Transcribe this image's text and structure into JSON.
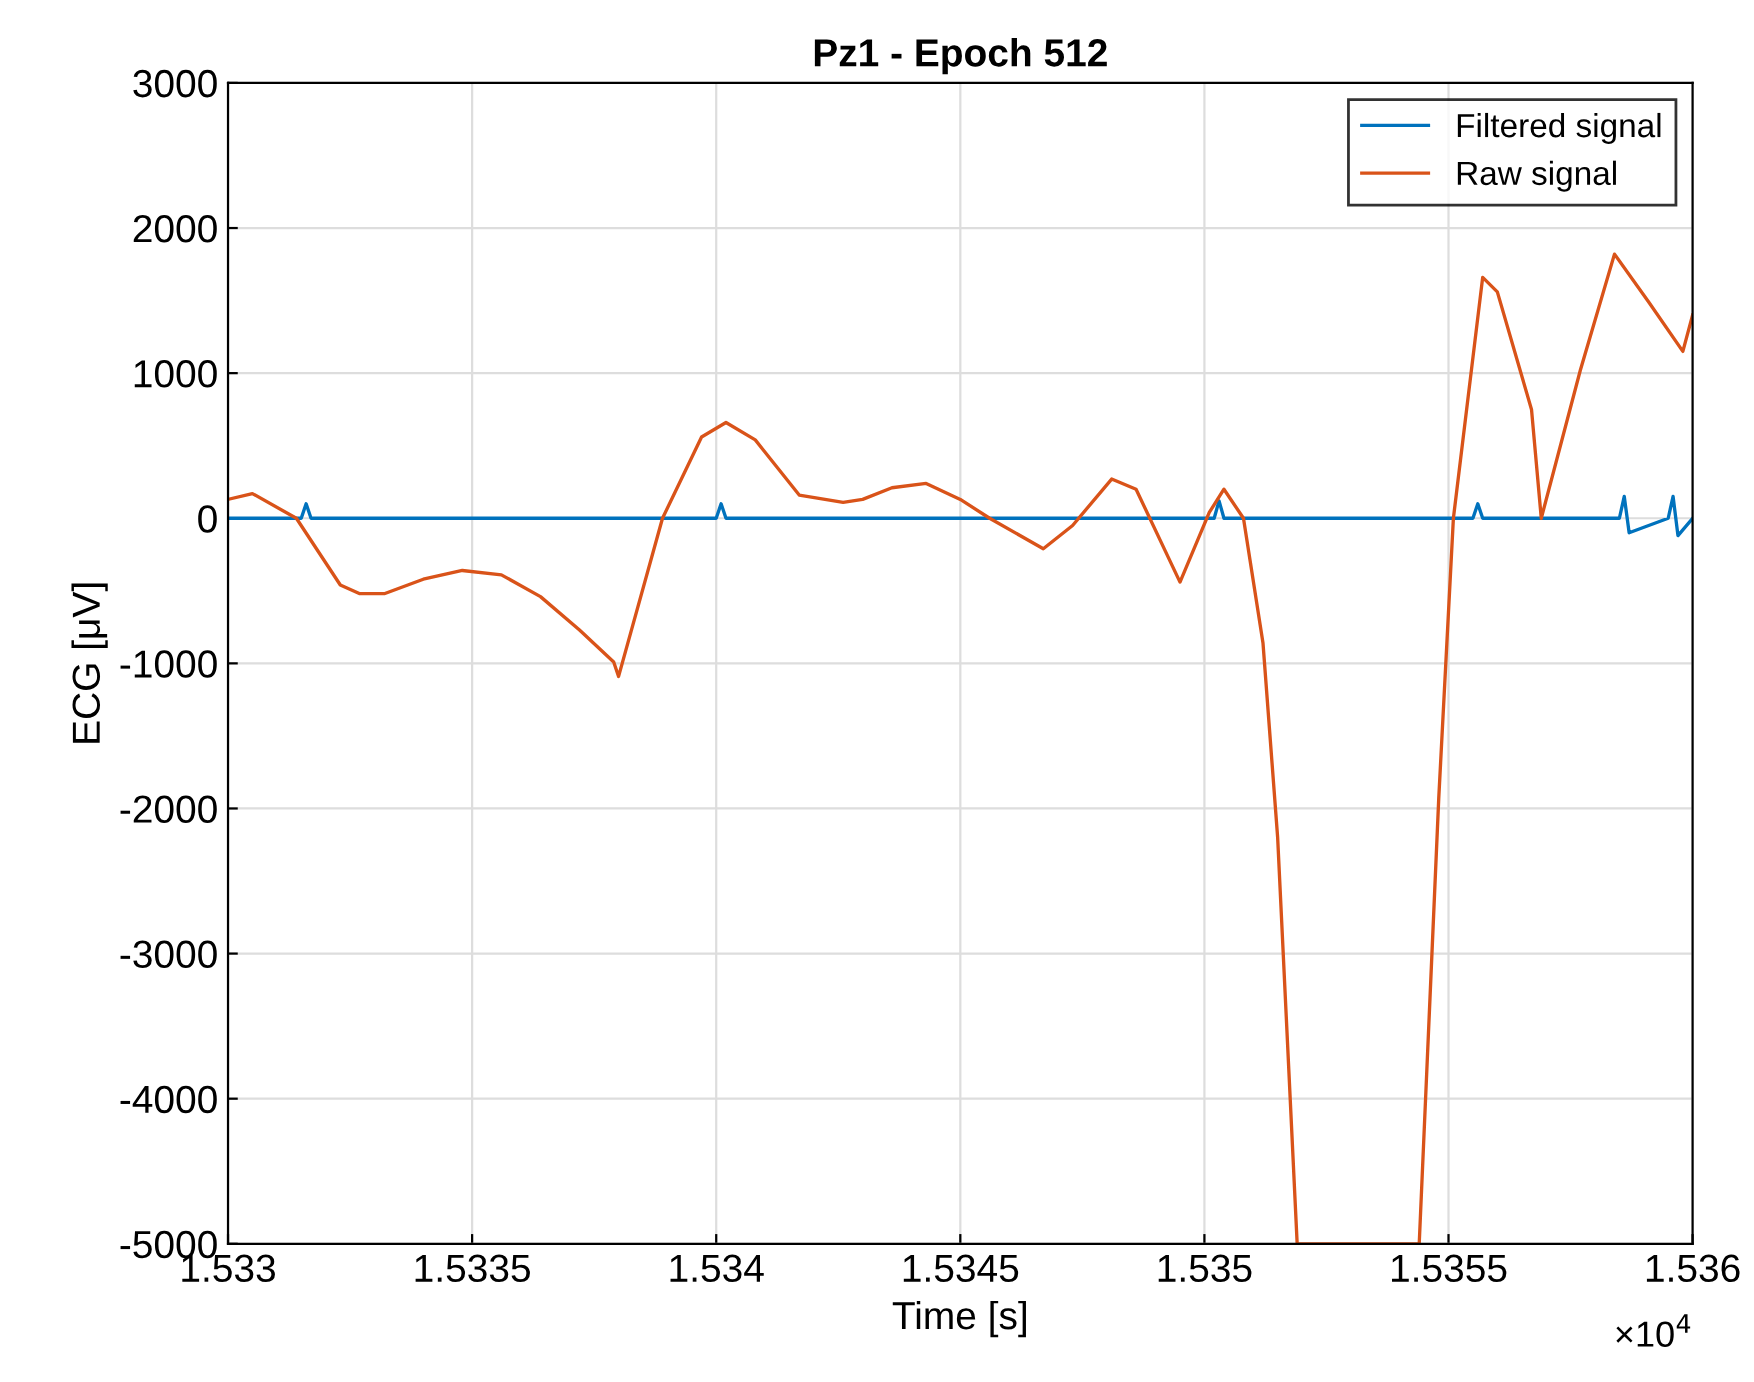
{
  "chart_data": {
    "type": "line",
    "title": "Pz1 - Epoch 512",
    "xlabel": "Time [s]",
    "ylabel": "ECG [μV]",
    "xlim": [
      1.533,
      1.536
    ],
    "ylim": [
      -5000,
      3000
    ],
    "xticks": [
      1.533,
      1.5335,
      1.534,
      1.5345,
      1.535,
      1.5355,
      1.536
    ],
    "yticks": [
      -5000,
      -4000,
      -3000,
      -2000,
      -1000,
      0,
      1000,
      2000,
      3000
    ],
    "annotations": [
      "×10$^{4}$"
    ],
    "grid": true,
    "legend": "top right",
    "marker": "none",
    "line_style": "solid",
    "series": [
      {
        "name": "Filtered signal",
        "color": "#0072bd",
        "x": [
          1.533,
          1.53315,
          1.53316,
          1.53317,
          1.534,
          1.53401,
          1.53402,
          1.53502,
          1.53503,
          1.53504,
          1.53555,
          1.53556,
          1.53557,
          1.53585,
          1.53586,
          1.53587,
          1.53595,
          1.53596,
          1.53597,
          1.536
        ],
        "values": [
          0,
          0,
          100,
          0,
          0,
          100,
          0,
          0,
          120,
          0,
          0,
          100,
          0,
          0,
          150,
          -100,
          0,
          150,
          -120,
          0
        ]
      },
      {
        "name": "Raw signal",
        "color": "#d95319",
        "x": [
          1.533,
          1.53305,
          1.53314,
          1.53323,
          1.53327,
          1.53332,
          1.5334,
          1.53348,
          1.53356,
          1.53364,
          1.53372,
          1.53379,
          1.5338,
          1.53389,
          1.53397,
          1.53402,
          1.53408,
          1.53417,
          1.53426,
          1.5343,
          1.53436,
          1.53443,
          1.5345,
          1.53456,
          1.53467,
          1.53473,
          1.53481,
          1.53486,
          1.53495,
          1.53501,
          1.53504,
          1.53508,
          1.53512,
          1.53515,
          1.53519,
          1.53544,
          1.53548,
          1.53551,
          1.53557,
          1.5356,
          1.53567,
          1.53569,
          1.53577,
          1.53584,
          1.53591,
          1.53598,
          1.536
        ],
        "values": [
          130,
          170,
          0,
          -460,
          -520,
          -520,
          -420,
          -360,
          -390,
          -540,
          -770,
          -990,
          -1090,
          0,
          560,
          660,
          540,
          160,
          110,
          130,
          210,
          240,
          130,
          0,
          -210,
          -50,
          270,
          200,
          -440,
          40,
          200,
          0,
          -860,
          -2200,
          -5000,
          -5000,
          -1930,
          0,
          1660,
          1560,
          750,
          0,
          1020,
          1820,
          1490,
          1150,
          1400
        ]
      }
    ]
  }
}
